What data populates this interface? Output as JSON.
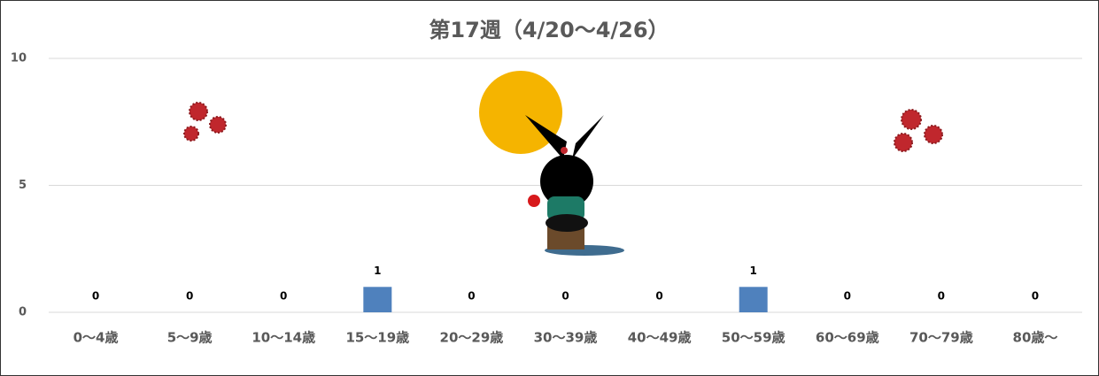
{
  "chart_data": {
    "type": "bar",
    "title": "第17週（4/20〜4/26）",
    "categories": [
      "0〜4歳",
      "5〜9歳",
      "10〜14歳",
      "15〜19歳",
      "20〜29歳",
      "30〜39歳",
      "40〜49歳",
      "50〜59歳",
      "60〜69歳",
      "70〜79歳",
      "80歳〜"
    ],
    "values": [
      0,
      0,
      0,
      1,
      0,
      0,
      0,
      1,
      0,
      0,
      0
    ],
    "color": "#4f81bd",
    "ylim": [
      0,
      10
    ],
    "yticks": [
      0,
      5,
      10
    ],
    "grid": true
  }
}
